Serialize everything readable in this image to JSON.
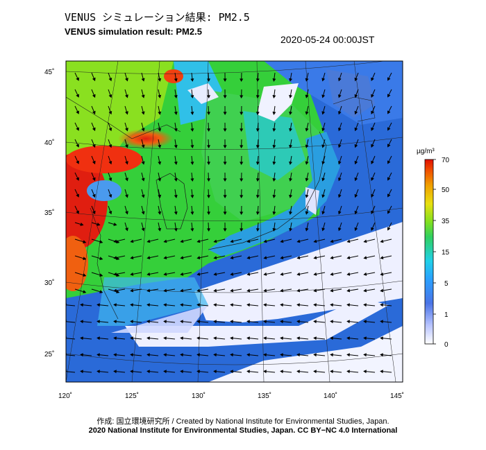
{
  "header": {
    "title_jp": "VENUS シミュレーション結果: PM2.5",
    "title_en": "VENUS simulation result: PM2.5",
    "timestamp": "2020-05-24 00:00JST"
  },
  "map": {
    "lat_labels": [
      "45˚",
      "40˚",
      "35˚",
      "30˚",
      "25˚"
    ],
    "lon_labels": [
      "120˚",
      "125˚",
      "130˚",
      "135˚",
      "140˚",
      "145˚"
    ],
    "region": "East Asia (China, Korea, Japan)",
    "colors": {
      "ocean_low": "#2a6ad8",
      "clean_air": "#f0f2ff",
      "moderate": "#3bd63b",
      "high": "#e02010"
    }
  },
  "colorbar": {
    "unit": "µg/m³",
    "ticks": [
      "70",
      "50",
      "35",
      "15",
      "5",
      "1",
      "0"
    ]
  },
  "footer": {
    "credit_line_1": "作成: 国立環境研究所 / Created by National Institute for Environmental Studies, Japan.",
    "credit_line_2": "2020 National Institute for Environmental Studies, Japan. CC BY−NC 4.0 International"
  }
}
